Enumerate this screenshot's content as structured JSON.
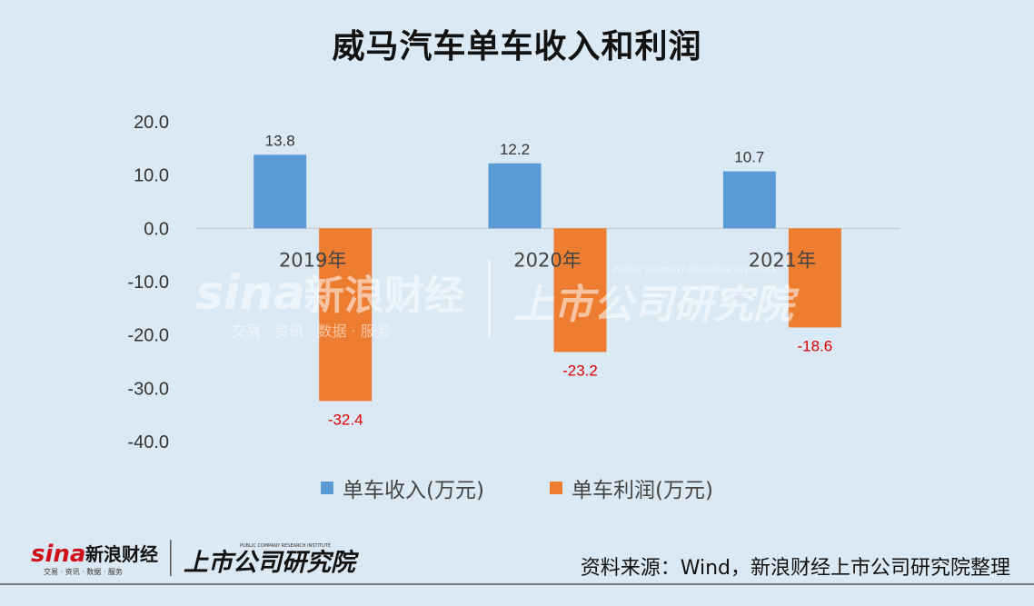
{
  "chart_data": {
    "type": "bar",
    "title": "威马汽车单车收入和利润",
    "categories": [
      "2019年",
      "2020年",
      "2021年"
    ],
    "series": [
      {
        "name": "单车收入(万元)",
        "values": [
          13.8,
          12.2,
          10.7
        ],
        "color": "#5b9bd5"
      },
      {
        "name": "单车利润(万元)",
        "values": [
          -32.4,
          -23.2,
          -18.6
        ],
        "color": "#ed7d31"
      }
    ],
    "data_labels": {
      "revenue": [
        "13.8",
        "12.2",
        "10.7"
      ],
      "profit": [
        "-32.4",
        "-23.2",
        "-18.6"
      ]
    },
    "ylim": [
      -40,
      20
    ],
    "yticks": [
      "20.0",
      "10.0",
      "0.0",
      "-10.0",
      "-20.0",
      "-30.0",
      "-40.0"
    ],
    "xlabel": "",
    "ylabel": "",
    "grid": false,
    "legend_position": "bottom",
    "negative_label_color": "#e00000"
  },
  "footer": {
    "source": "资料来源：Wind，新浪财经上市公司研究院整理",
    "logo_sina": "sina",
    "logo_sina_cn": "新浪财经",
    "logo_sina_sub": "交易 · 资讯 · 数据 · 服务",
    "logo_institute": "上市公司研究院",
    "logo_institute_en": "PUBLIC COMPANY RESEARCH INSTITUTE"
  }
}
